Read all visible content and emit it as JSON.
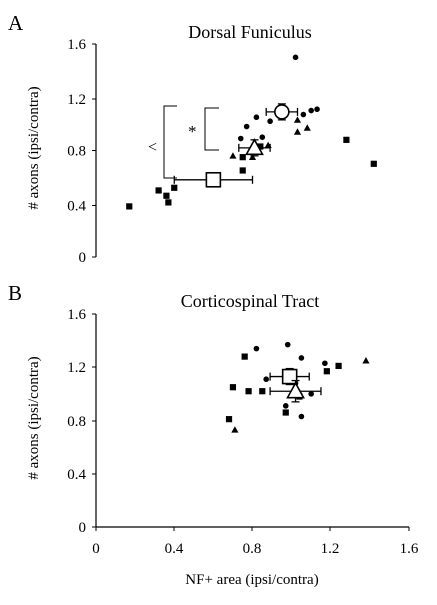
{
  "panels": [
    {
      "letter": "A",
      "title": "Dorsal Funiculus",
      "ylabel": "# axons (ipsi/contra)",
      "yticks": [
        "0",
        "0.4",
        "0.8",
        "1.2",
        "1.6"
      ],
      "annotations": {
        "bracket_outer": "<",
        "bracket_inner": "*"
      }
    },
    {
      "letter": "B",
      "title": "Corticospinal Tract",
      "ylabel": "# axons (ipsi/contra)",
      "yticks": [
        "0",
        "0.4",
        "0.8",
        "1.2",
        "1.6"
      ],
      "xticks": [
        "0",
        "0.4",
        "0.8",
        "1.2",
        "1.6"
      ],
      "xlabel": "NF+ area (ipsi/contra)"
    }
  ],
  "chart_data": [
    {
      "type": "scatter",
      "title": "Dorsal Funiculus",
      "xlabel": "",
      "ylabel": "# axons (ipsi/contra)",
      "xlim": [
        0,
        1.6
      ],
      "ylim": [
        0,
        1.6
      ],
      "grid": false,
      "series": [
        {
          "marker": "square",
          "points": [
            [
              0.17,
              0.38
            ],
            [
              0.32,
              0.5
            ],
            [
              0.36,
              0.46
            ],
            [
              0.37,
              0.41
            ],
            [
              0.4,
              0.52
            ],
            [
              0.75,
              0.65
            ],
            [
              0.75,
              0.75
            ],
            [
              0.84,
              0.83
            ],
            [
              1.28,
              0.88
            ],
            [
              1.42,
              0.7
            ]
          ]
        },
        {
          "marker": "triangle",
          "points": [
            [
              0.7,
              0.76
            ],
            [
              0.8,
              0.75
            ],
            [
              0.88,
              0.84
            ],
            [
              1.03,
              0.94
            ],
            [
              1.08,
              0.97
            ],
            [
              1.03,
              1.03
            ]
          ]
        },
        {
          "marker": "circle",
          "points": [
            [
              0.74,
              0.89
            ],
            [
              0.77,
              0.98
            ],
            [
              0.82,
              1.05
            ],
            [
              0.85,
              0.9
            ],
            [
              0.89,
              1.02
            ],
            [
              1.06,
              1.07
            ],
            [
              1.1,
              1.1
            ],
            [
              1.13,
              1.11
            ],
            [
              1.02,
              1.5
            ]
          ]
        }
      ],
      "means": [
        {
          "marker": "open-square",
          "x": 0.6,
          "y": 0.58,
          "x_err": 0.2,
          "y_err": 0.05
        },
        {
          "marker": "open-triangle",
          "x": 0.81,
          "y": 0.82,
          "x_err": 0.08,
          "y_err": 0.06
        },
        {
          "marker": "open-circle",
          "x": 0.95,
          "y": 1.09,
          "x_err": 0.08,
          "y_err": 0.06
        }
      ]
    },
    {
      "type": "scatter",
      "title": "Corticospinal Tract",
      "xlabel": "NF+ area (ipsi/contra)",
      "ylabel": "# axons (ipsi/contra)",
      "xlim": [
        0,
        1.6
      ],
      "ylim": [
        0,
        1.6
      ],
      "grid": false,
      "series": [
        {
          "marker": "square",
          "points": [
            [
              0.68,
              0.81
            ],
            [
              0.7,
              1.05
            ],
            [
              0.76,
              1.28
            ],
            [
              0.78,
              1.02
            ],
            [
              0.85,
              1.02
            ],
            [
              0.97,
              0.86
            ],
            [
              1.04,
              0.98
            ],
            [
              1.18,
              1.17
            ],
            [
              1.24,
              1.21
            ]
          ]
        },
        {
          "marker": "triangle",
          "points": [
            [
              0.71,
              0.73
            ],
            [
              1.38,
              1.25
            ]
          ]
        },
        {
          "marker": "circle",
          "points": [
            [
              0.82,
              1.34
            ],
            [
              0.87,
              1.11
            ],
            [
              0.97,
              0.91
            ],
            [
              0.98,
              1.37
            ],
            [
              1.02,
              1.08
            ],
            [
              1.05,
              1.27
            ],
            [
              1.05,
              0.83
            ],
            [
              1.1,
              1.0
            ],
            [
              1.17,
              1.23
            ]
          ]
        }
      ],
      "means": [
        {
          "marker": "open-square",
          "x": 0.99,
          "y": 1.13,
          "x_err": 0.1,
          "y_err": 0.06
        },
        {
          "marker": "open-triangle",
          "x": 1.02,
          "y": 1.02,
          "x_err": 0.13,
          "y_err": 0.08
        }
      ]
    }
  ]
}
